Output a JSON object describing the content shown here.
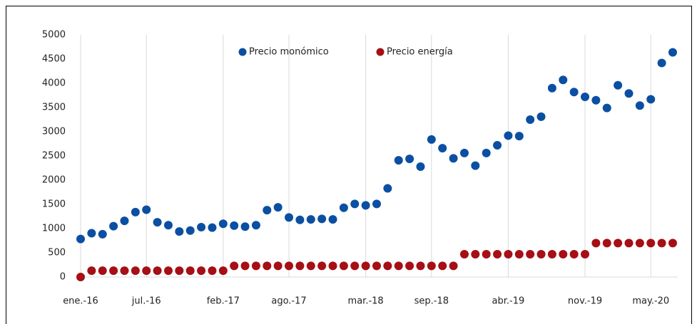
{
  "chart_data": {
    "type": "scatter",
    "categories": [
      "ene.-16",
      null,
      null,
      null,
      null,
      null,
      "jul.-16",
      null,
      null,
      null,
      null,
      null,
      null,
      "feb.-17",
      null,
      null,
      null,
      null,
      null,
      "ago.-17",
      null,
      null,
      null,
      null,
      null,
      null,
      "mar.-18",
      null,
      null,
      null,
      null,
      null,
      "sep.-18",
      null,
      null,
      null,
      null,
      null,
      null,
      "abr.-19",
      null,
      null,
      null,
      null,
      null,
      null,
      "nov.-19",
      null,
      null,
      null,
      null,
      null,
      "may.-20",
      null,
      null
    ],
    "series": [
      {
        "name": "Precio monómico",
        "color": "#0b4fa3",
        "values": [
          785,
          905,
          885,
          1050,
          1160,
          1340,
          1390,
          1130,
          1070,
          940,
          960,
          1030,
          1020,
          1100,
          1060,
          1040,
          1070,
          1380,
          1440,
          1230,
          1180,
          1190,
          1200,
          1190,
          1430,
          1510,
          1480,
          1510,
          1830,
          2410,
          2440,
          2280,
          2840,
          2660,
          2450,
          2560,
          2300,
          2560,
          2720,
          2920,
          2910,
          3250,
          3310,
          3900,
          4070,
          3820,
          3720,
          3650,
          3490,
          3960,
          3790,
          3540,
          3670,
          4420,
          4640
        ]
      },
      {
        "name": "Precio energía",
        "color": "#a50f15",
        "values": [
          0,
          130,
          130,
          130,
          130,
          130,
          130,
          130,
          130,
          130,
          130,
          130,
          130,
          130,
          230,
          230,
          230,
          230,
          230,
          230,
          230,
          230,
          230,
          230,
          230,
          230,
          230,
          230,
          230,
          230,
          230,
          230,
          230,
          230,
          230,
          470,
          470,
          470,
          470,
          470,
          470,
          470,
          470,
          470,
          470,
          470,
          470,
          700,
          700,
          700,
          700,
          700,
          700,
          700,
          700
        ]
      }
    ],
    "ylim": [
      0,
      5000
    ],
    "yticks": [
      0,
      500,
      1000,
      1500,
      2000,
      2500,
      3000,
      3500,
      4000,
      4500,
      5000
    ],
    "grid": "x",
    "legend": "top"
  }
}
